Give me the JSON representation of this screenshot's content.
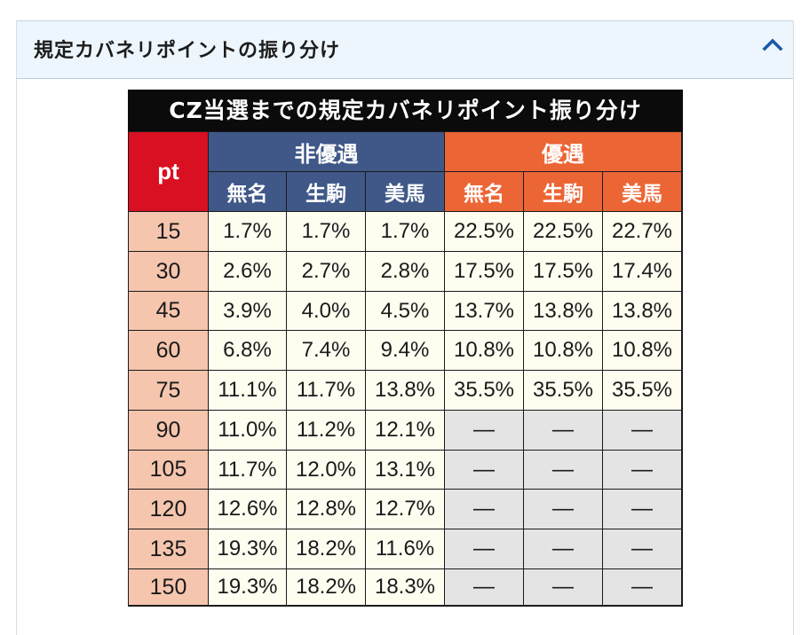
{
  "panel": {
    "title": "規定カバネリポイントの振り分け",
    "collapse_icon": "chevron-up-icon"
  },
  "table": {
    "title": "CZ当選までの規定カバネリポイント振り分け",
    "pt_label": "pt",
    "groups": [
      {
        "label": "非優遇",
        "color": "#3f5888"
      },
      {
        "label": "優遇",
        "color": "#ec6535"
      }
    ],
    "subheaders": [
      "無名",
      "生駒",
      "美馬",
      "無名",
      "生駒",
      "美馬"
    ],
    "rows": [
      {
        "pt": "15",
        "values": [
          "1.7%",
          "1.7%",
          "1.7%",
          "22.5%",
          "22.5%",
          "22.7%"
        ]
      },
      {
        "pt": "30",
        "values": [
          "2.6%",
          "2.7%",
          "2.8%",
          "17.5%",
          "17.5%",
          "17.4%"
        ]
      },
      {
        "pt": "45",
        "values": [
          "3.9%",
          "4.0%",
          "4.5%",
          "13.7%",
          "13.8%",
          "13.8%"
        ]
      },
      {
        "pt": "60",
        "values": [
          "6.8%",
          "7.4%",
          "9.4%",
          "10.8%",
          "10.8%",
          "10.8%"
        ]
      },
      {
        "pt": "75",
        "values": [
          "11.1%",
          "11.7%",
          "13.8%",
          "35.5%",
          "35.5%",
          "35.5%"
        ]
      },
      {
        "pt": "90",
        "values": [
          "11.0%",
          "11.2%",
          "12.1%",
          "―",
          "―",
          "―"
        ]
      },
      {
        "pt": "105",
        "values": [
          "11.7%",
          "12.0%",
          "13.1%",
          "―",
          "―",
          "―"
        ]
      },
      {
        "pt": "120",
        "values": [
          "12.6%",
          "12.8%",
          "12.7%",
          "―",
          "―",
          "―"
        ]
      },
      {
        "pt": "135",
        "values": [
          "19.3%",
          "18.2%",
          "11.6%",
          "―",
          "―",
          "―"
        ]
      },
      {
        "pt": "150",
        "values": [
          "19.3%",
          "18.2%",
          "18.3%",
          "―",
          "―",
          "―"
        ]
      }
    ]
  }
}
